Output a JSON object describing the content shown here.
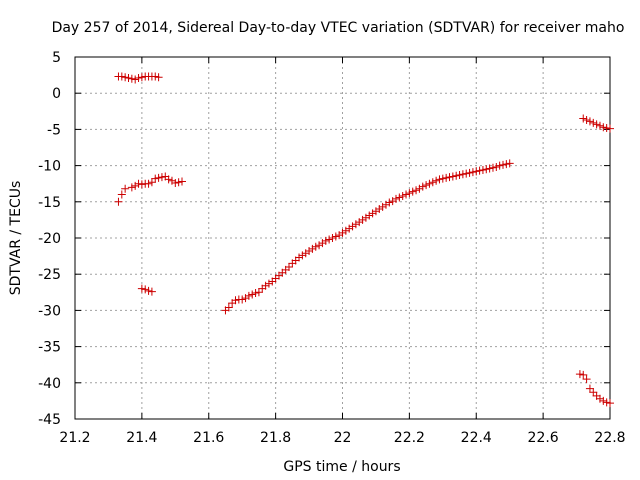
{
  "chart_data": {
    "type": "scatter",
    "title": "Day 257 of 2014, Sidereal Day-to-day VTEC variation (SDTVAR) for receiver maho",
    "xlabel": "GPS time / hours",
    "ylabel": "SDTVAR / TECUs",
    "xlim": [
      21.2,
      22.8
    ],
    "ylim": [
      -45,
      5
    ],
    "xticks": [
      "21.2",
      "21.4",
      "21.6",
      "21.8",
      "22",
      "22.2",
      "22.4",
      "22.6",
      "22.8"
    ],
    "yticks": [
      "5",
      "0",
      "-5",
      "-10",
      "-15",
      "-20",
      "-25",
      "-30",
      "-35",
      "-40",
      "-45"
    ],
    "grid": true,
    "marker": "plus",
    "color": "#cc0000",
    "series": [
      {
        "points": [
          [
            21.33,
            2.3
          ],
          [
            21.34,
            2.3
          ],
          [
            21.35,
            2.2
          ],
          [
            21.36,
            2.1
          ],
          [
            21.37,
            2.0
          ],
          [
            21.38,
            1.9
          ],
          [
            21.39,
            2.1
          ],
          [
            21.4,
            2.2
          ],
          [
            21.41,
            2.3
          ],
          [
            21.42,
            2.3
          ],
          [
            21.43,
            2.3
          ],
          [
            21.44,
            2.3
          ],
          [
            21.45,
            2.2
          ]
        ]
      },
      {
        "points": [
          [
            21.33,
            -15.0
          ],
          [
            21.34,
            -14.0
          ],
          [
            21.35,
            -13.2
          ],
          [
            21.37,
            -13.0
          ],
          [
            21.38,
            -12.8
          ],
          [
            21.39,
            -12.5
          ],
          [
            21.4,
            -12.6
          ],
          [
            21.41,
            -12.5
          ],
          [
            21.42,
            -12.5
          ],
          [
            21.43,
            -12.3
          ],
          [
            21.44,
            -11.8
          ],
          [
            21.45,
            -11.7
          ],
          [
            21.46,
            -11.6
          ],
          [
            21.47,
            -11.5
          ],
          [
            21.48,
            -11.9
          ],
          [
            21.49,
            -12.1
          ],
          [
            21.5,
            -12.4
          ],
          [
            21.51,
            -12.3
          ],
          [
            21.52,
            -12.2
          ]
        ]
      },
      {
        "points": [
          [
            21.4,
            -27.0
          ],
          [
            21.41,
            -27.1
          ],
          [
            21.42,
            -27.3
          ],
          [
            21.43,
            -27.4
          ]
        ]
      },
      {
        "points": [
          [
            21.65,
            -30.0
          ],
          [
            21.66,
            -29.6
          ],
          [
            21.67,
            -29.0
          ],
          [
            21.68,
            -28.6
          ],
          [
            21.69,
            -28.5
          ],
          [
            21.7,
            -28.5
          ],
          [
            21.71,
            -28.3
          ],
          [
            21.72,
            -28.0
          ],
          [
            21.73,
            -27.8
          ],
          [
            21.74,
            -27.6
          ],
          [
            21.75,
            -27.5
          ],
          [
            21.76,
            -27.0
          ],
          [
            21.77,
            -26.6
          ],
          [
            21.78,
            -26.3
          ],
          [
            21.79,
            -26.0
          ],
          [
            21.8,
            -25.6
          ],
          [
            21.81,
            -25.2
          ],
          [
            21.82,
            -24.8
          ],
          [
            21.83,
            -24.4
          ],
          [
            21.84,
            -24.0
          ],
          [
            21.85,
            -23.5
          ],
          [
            21.86,
            -23.1
          ],
          [
            21.87,
            -22.7
          ],
          [
            21.88,
            -22.4
          ],
          [
            21.89,
            -22.1
          ],
          [
            21.9,
            -21.8
          ],
          [
            21.91,
            -21.5
          ],
          [
            21.92,
            -21.2
          ],
          [
            21.93,
            -21.0
          ],
          [
            21.94,
            -20.7
          ],
          [
            21.95,
            -20.4
          ],
          [
            21.96,
            -20.2
          ],
          [
            21.97,
            -20.0
          ],
          [
            21.98,
            -19.8
          ],
          [
            21.99,
            -19.6
          ],
          [
            22.0,
            -19.3
          ],
          [
            22.01,
            -19.0
          ],
          [
            22.02,
            -18.7
          ],
          [
            22.03,
            -18.4
          ],
          [
            22.04,
            -18.1
          ],
          [
            22.05,
            -17.8
          ],
          [
            22.06,
            -17.5
          ],
          [
            22.07,
            -17.2
          ],
          [
            22.08,
            -16.9
          ],
          [
            22.09,
            -16.6
          ],
          [
            22.1,
            -16.3
          ],
          [
            22.11,
            -16.0
          ],
          [
            22.12,
            -15.7
          ],
          [
            22.13,
            -15.4
          ],
          [
            22.14,
            -15.1
          ],
          [
            22.15,
            -14.9
          ],
          [
            22.16,
            -14.6
          ],
          [
            22.17,
            -14.4
          ],
          [
            22.18,
            -14.2
          ],
          [
            22.19,
            -14.0
          ],
          [
            22.2,
            -13.8
          ],
          [
            22.21,
            -13.6
          ],
          [
            22.22,
            -13.4
          ],
          [
            22.23,
            -13.2
          ],
          [
            22.24,
            -12.9
          ],
          [
            22.25,
            -12.7
          ],
          [
            22.26,
            -12.5
          ],
          [
            22.27,
            -12.3
          ],
          [
            22.28,
            -12.1
          ],
          [
            22.29,
            -11.9
          ],
          [
            22.3,
            -11.8
          ],
          [
            22.31,
            -11.7
          ],
          [
            22.32,
            -11.6
          ],
          [
            22.33,
            -11.5
          ],
          [
            22.34,
            -11.4
          ],
          [
            22.35,
            -11.3
          ],
          [
            22.36,
            -11.2
          ],
          [
            22.37,
            -11.1
          ],
          [
            22.38,
            -11.0
          ],
          [
            22.39,
            -10.9
          ],
          [
            22.4,
            -10.8
          ],
          [
            22.41,
            -10.7
          ],
          [
            22.42,
            -10.6
          ],
          [
            22.43,
            -10.5
          ],
          [
            22.44,
            -10.4
          ],
          [
            22.45,
            -10.3
          ],
          [
            22.46,
            -10.2
          ],
          [
            22.47,
            -10.0
          ],
          [
            22.48,
            -9.9
          ],
          [
            22.49,
            -9.8
          ],
          [
            22.5,
            -9.7
          ]
        ]
      },
      {
        "points": [
          [
            22.72,
            -3.5
          ],
          [
            22.73,
            -3.7
          ],
          [
            22.74,
            -3.9
          ],
          [
            22.75,
            -4.1
          ],
          [
            22.76,
            -4.3
          ],
          [
            22.77,
            -4.5
          ],
          [
            22.78,
            -4.7
          ],
          [
            22.79,
            -4.8
          ],
          [
            22.8,
            -4.9
          ]
        ]
      },
      {
        "points": [
          [
            22.71,
            -38.8
          ],
          [
            22.72,
            -38.9
          ],
          [
            22.73,
            -39.5
          ],
          [
            22.74,
            -40.8
          ],
          [
            22.75,
            -41.3
          ],
          [
            22.76,
            -41.8
          ],
          [
            22.77,
            -42.2
          ],
          [
            22.78,
            -42.5
          ],
          [
            22.79,
            -42.7
          ],
          [
            22.8,
            -42.8
          ]
        ]
      }
    ]
  }
}
